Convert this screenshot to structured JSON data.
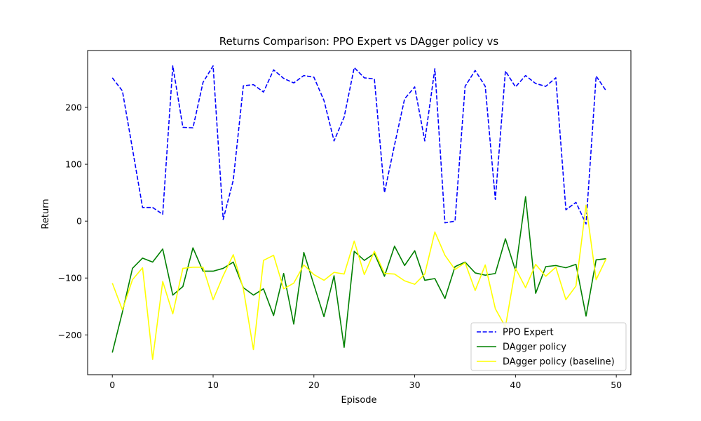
{
  "chart_data": {
    "type": "line",
    "title": "Returns Comparison: PPO Expert vs DAgger policy vs",
    "xlabel": "Episode",
    "ylabel": "Return",
    "xlim": [
      -2.45,
      51.45
    ],
    "ylim": [
      -270,
      300
    ],
    "xticks": [
      0,
      10,
      20,
      30,
      40,
      50
    ],
    "yticks": [
      -200,
      -100,
      0,
      100,
      200
    ],
    "grid": false,
    "legend_position": "lower-right",
    "x": [
      0,
      1,
      2,
      3,
      4,
      5,
      6,
      7,
      8,
      9,
      10,
      11,
      12,
      13,
      14,
      15,
      16,
      17,
      18,
      19,
      20,
      21,
      22,
      23,
      24,
      25,
      26,
      27,
      28,
      29,
      30,
      31,
      32,
      33,
      34,
      35,
      36,
      37,
      38,
      39,
      40,
      41,
      42,
      43,
      44,
      45,
      46,
      47,
      48,
      49
    ],
    "series": [
      {
        "name": "PPO Expert",
        "color": "#0000ff",
        "dash": "dashed",
        "values": [
          252,
          229,
          127,
          24,
          24,
          12,
          273,
          165,
          164,
          244,
          273,
          3,
          72,
          238,
          240,
          227,
          266,
          251,
          243,
          256,
          253,
          212,
          141,
          183,
          270,
          252,
          250,
          50,
          134,
          215,
          236,
          141,
          268,
          -3,
          0,
          237,
          265,
          237,
          38,
          264,
          236,
          256,
          242,
          237,
          252,
          20,
          33,
          -5,
          255,
          229
        ]
      },
      {
        "name": "DAgger policy",
        "color": "#008000",
        "dash": "solid",
        "values": [
          -231,
          -160,
          -83,
          -65,
          -72,
          -49,
          -130,
          -115,
          -47,
          -88,
          -88,
          -83,
          -72,
          -117,
          -130,
          -119,
          -166,
          -92,
          -181,
          -55,
          -112,
          -168,
          -96,
          -222,
          -53,
          -69,
          -57,
          -97,
          -44,
          -78,
          -52,
          -104,
          -101,
          -136,
          -80,
          -72,
          -91,
          -95,
          -92,
          -31,
          -87,
          43,
          -127,
          -80,
          -78,
          -82,
          -76,
          -167,
          -68,
          -66
        ]
      },
      {
        "name": "DAgger policy (baseline)",
        "color": "#ffff00",
        "dash": "solid",
        "values": [
          -109,
          -156,
          -103,
          -82,
          -243,
          -106,
          -163,
          -83,
          -81,
          -81,
          -138,
          -96,
          -59,
          -119,
          -226,
          -69,
          -60,
          -119,
          -109,
          -77,
          -94,
          -104,
          -90,
          -93,
          -35,
          -94,
          -53,
          -92,
          -93,
          -105,
          -111,
          -93,
          -19,
          -60,
          -85,
          -73,
          -122,
          -77,
          -154,
          -186,
          -83,
          -117,
          -76,
          -97,
          -81,
          -138,
          -114,
          28,
          -103,
          -66
        ]
      }
    ]
  }
}
